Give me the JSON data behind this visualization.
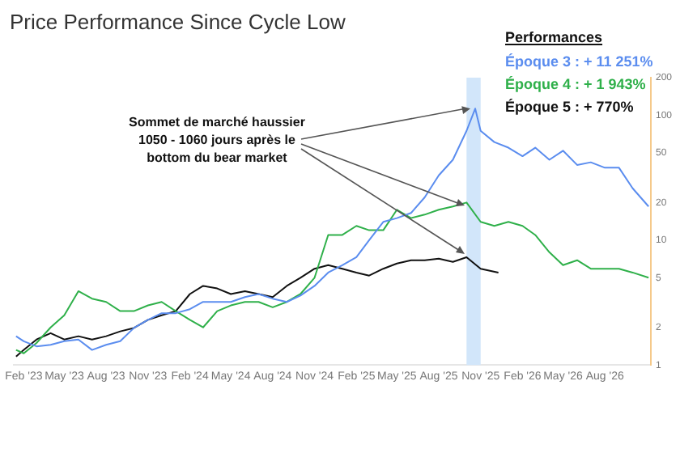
{
  "chart_data": {
    "type": "line",
    "title": "Price Performance Since Cycle Low",
    "xlim": [
      "2023-01-10",
      "2026-11-10"
    ],
    "xticks": [
      {
        "value": "2023-02-01",
        "label": "Feb '23"
      },
      {
        "value": "2023-05-01",
        "label": "May '23"
      },
      {
        "value": "2023-08-01",
        "label": "Aug '23"
      },
      {
        "value": "2023-11-01",
        "label": "Nov '23"
      },
      {
        "value": "2024-02-01",
        "label": "Feb '24"
      },
      {
        "value": "2024-05-01",
        "label": "May '24"
      },
      {
        "value": "2024-08-01",
        "label": "Aug '24"
      },
      {
        "value": "2024-11-01",
        "label": "Nov '24"
      },
      {
        "value": "2025-02-01",
        "label": "Feb '25"
      },
      {
        "value": "2025-05-01",
        "label": "May '25"
      },
      {
        "value": "2025-08-01",
        "label": "Aug '25"
      },
      {
        "value": "2025-11-01",
        "label": "Nov '25"
      },
      {
        "value": "2026-02-01",
        "label": "Feb '26"
      },
      {
        "value": "2026-05-01",
        "label": "May '26"
      },
      {
        "value": "2026-08-01",
        "label": "Aug '26"
      }
    ],
    "ylim": [
      1,
      200
    ],
    "yticks": [
      1,
      2,
      5,
      10,
      20,
      50,
      100,
      200
    ],
    "log": "y",
    "bands": [
      {
        "axis": "x",
        "from": "2025-10-01",
        "to": "2025-11-01",
        "color": "#d2e6fa"
      }
    ],
    "series": [
      {
        "color": "#5b8def",
        "x": [
          "2023-01-15",
          "2023-02",
          "2023-03",
          "2023-04",
          "2023-05",
          "2023-06",
          "2023-07",
          "2023-08",
          "2023-09",
          "2023-10",
          "2023-11",
          "2023-12",
          "2024-01",
          "2024-02",
          "2024-03",
          "2024-04",
          "2024-05",
          "2024-06",
          "2024-07",
          "2024-08",
          "2024-09",
          "2024-10",
          "2024-11",
          "2024-12",
          "2025-01",
          "2025-02",
          "2025-03",
          "2025-04",
          "2025-05",
          "2025-06",
          "2025-07",
          "2025-08",
          "2025-09",
          "2025-10",
          "2025-10-20",
          "2025-11",
          "2025-12",
          "2026-01",
          "2026-02",
          "2026-03",
          "2026-04",
          "2026-05",
          "2026-06",
          "2026-07",
          "2026-08",
          "2026-09",
          "2026-10",
          "2026-11-05"
        ],
        "values": [
          1.7,
          1.55,
          1.41,
          1.45,
          1.55,
          1.6,
          1.32,
          1.45,
          1.55,
          1.98,
          2.3,
          2.6,
          2.6,
          2.8,
          3.2,
          3.2,
          3.2,
          3.5,
          3.7,
          3.4,
          3.2,
          3.6,
          4.3,
          5.5,
          6.3,
          7.3,
          10,
          14,
          15,
          16.5,
          22,
          33,
          44,
          75,
          113,
          75,
          61,
          55,
          47,
          55,
          44,
          52,
          40,
          42,
          38,
          38,
          26,
          18.6
        ]
      },
      {
        "color": "#2fb04a",
        "x": [
          "2023-01-15",
          "2023-02",
          "2023-03",
          "2023-04",
          "2023-05",
          "2023-06",
          "2023-07",
          "2023-08",
          "2023-09",
          "2023-10",
          "2023-11",
          "2023-12",
          "2024-01",
          "2024-02",
          "2024-03",
          "2024-04",
          "2024-05",
          "2024-06",
          "2024-07",
          "2024-08",
          "2024-09",
          "2024-10",
          "2024-11",
          "2024-12",
          "2025-01",
          "2025-02",
          "2025-03",
          "2025-04",
          "2025-05",
          "2025-06",
          "2025-07",
          "2025-08",
          "2025-09",
          "2025-10",
          "2025-11",
          "2025-12",
          "2026-01",
          "2026-02",
          "2026-03",
          "2026-04",
          "2026-05",
          "2026-06",
          "2026-07",
          "2026-08",
          "2026-09",
          "2026-10",
          "2026-11-05"
        ],
        "values": [
          1.32,
          1.24,
          1.5,
          2.0,
          2.5,
          3.9,
          3.4,
          3.2,
          2.7,
          2.7,
          3.0,
          3.2,
          2.7,
          2.3,
          2.0,
          2.7,
          3.0,
          3.2,
          3.2,
          2.9,
          3.2,
          3.7,
          5.0,
          11,
          11,
          13,
          12,
          12,
          17.5,
          15,
          16,
          17.5,
          18.6,
          20,
          14,
          13,
          14,
          13,
          11,
          8,
          6.3,
          6.9,
          5.9,
          5.9,
          5.9,
          5.5,
          5.0
        ]
      },
      {
        "color": "#111111",
        "x": [
          "2023-01-15",
          "2023-02",
          "2023-03",
          "2023-04",
          "2023-05",
          "2023-06",
          "2023-07",
          "2023-08",
          "2023-09",
          "2023-10",
          "2023-11",
          "2023-12",
          "2024-01",
          "2024-02",
          "2024-03",
          "2024-04",
          "2024-05",
          "2024-06",
          "2024-07",
          "2024-08",
          "2024-09",
          "2024-10",
          "2024-11",
          "2024-12",
          "2025-01",
          "2025-02",
          "2025-03",
          "2025-04",
          "2025-05",
          "2025-06",
          "2025-07",
          "2025-08",
          "2025-09",
          "2025-10",
          "2025-11",
          "2025-12-10"
        ],
        "values": [
          1.17,
          1.32,
          1.6,
          1.8,
          1.6,
          1.7,
          1.6,
          1.7,
          1.86,
          1.98,
          2.3,
          2.5,
          2.7,
          3.7,
          4.3,
          4.1,
          3.7,
          3.9,
          3.7,
          3.5,
          4.3,
          5.0,
          5.9,
          6.3,
          5.9,
          5.5,
          5.2,
          5.9,
          6.5,
          6.9,
          6.9,
          7.1,
          6.7,
          7.3,
          5.9,
          5.5
        ]
      }
    ],
    "annotations": [
      {
        "text": "Sommet de marché haussier 1050 - 1060 jours après le bottom du bear market",
        "x": "2025-10-20",
        "y": 113
      },
      "Performances",
      "Époque 3 : + 11 251%",
      "Époque 4 : + 1 943%",
      "Époque 5 : + 770%"
    ]
  }
}
